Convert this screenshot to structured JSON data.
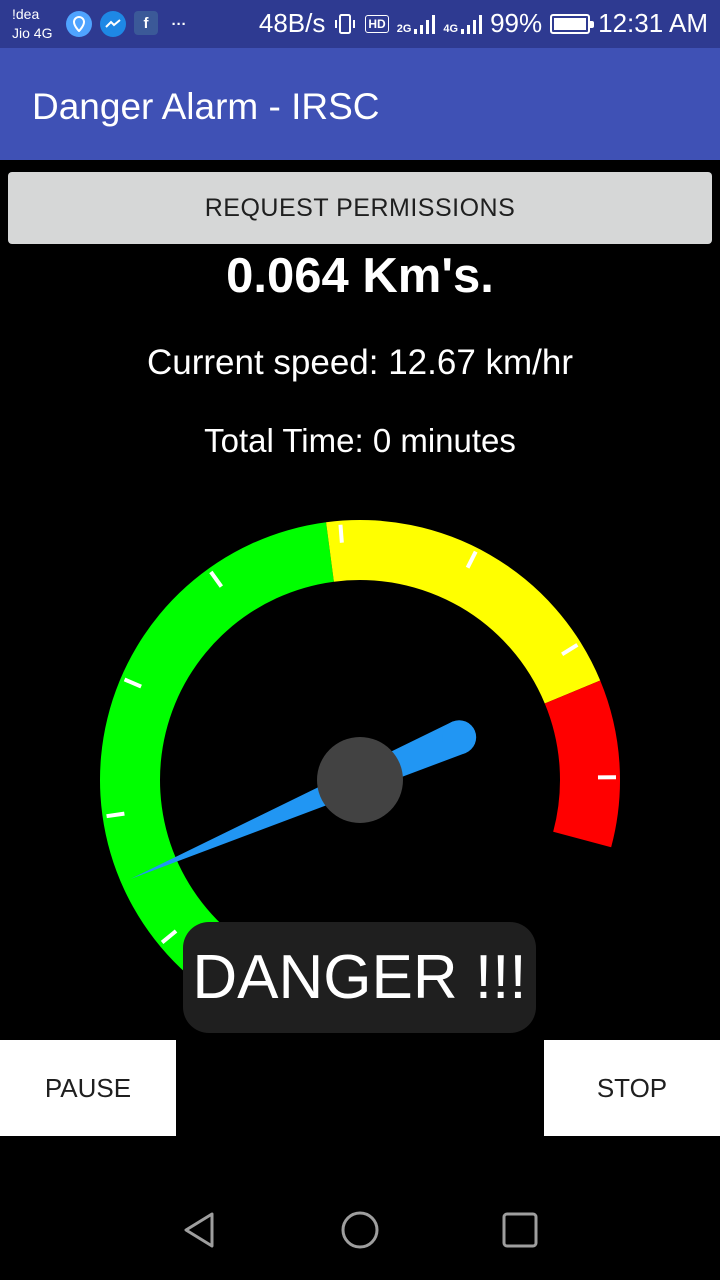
{
  "status_bar": {
    "carrier_1": "!dea",
    "carrier_2": "Jio 4G",
    "net_speed": "48B/s",
    "hd": "HD",
    "net_2g": "2G",
    "net_4g": "4G",
    "battery_pct": "99%",
    "battery_level": 0.99,
    "time": "12:31 AM",
    "more": "···"
  },
  "app_bar": {
    "title": "Danger Alarm - IRSC"
  },
  "request_button": {
    "label": "REQUEST PERMISSIONS"
  },
  "readings": {
    "distance": "0.064 Km's.",
    "speed": "Current speed: 12.67 km/hr",
    "total_time": "Total Time: 0 minutes"
  },
  "gauge": {
    "value": 12.67,
    "min": 0,
    "max": 100,
    "zones": [
      {
        "name": "safe",
        "from": 0,
        "to": 55,
        "color": "#00ff00"
      },
      {
        "name": "warning",
        "from": 55,
        "to": 85,
        "color": "#ffff00"
      },
      {
        "name": "danger",
        "from": 85,
        "to": 100,
        "color": "#ff0000"
      }
    ],
    "tick_count": 8,
    "needle_color": "#2196f3",
    "hub_color": "#424242"
  },
  "toast": {
    "text": "DANGER !!!"
  },
  "controls": {
    "pause_label": "PAUSE",
    "stop_label": "STOP"
  },
  "colors": {
    "appbar": "#3f51b5",
    "statusbar": "#2e3a91",
    "button_gray": "#d6d7d7"
  }
}
